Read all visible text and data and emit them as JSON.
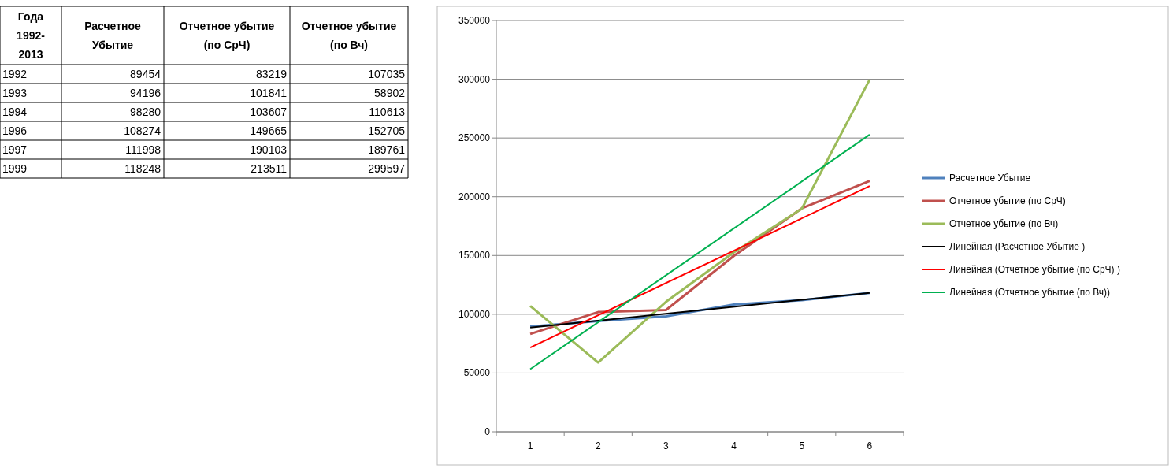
{
  "chart_data": [
    {
      "type": "heatmap",
      "ylabel": "Года 1992-2013",
      "categories": [
        "Расчетное Убытие",
        "Отчетное убытие (по СрЧ)",
        "Отчетное убытие (по Вч)"
      ],
      "y_categories": [
        "1992",
        "1993",
        "1994",
        "1996",
        "1997",
        "1999"
      ],
      "cells": [
        [
          89454,
          83219,
          107035
        ],
        [
          94196,
          101841,
          58902
        ],
        [
          98280,
          103607,
          110613
        ],
        [
          108274,
          149665,
          152705
        ],
        [
          111998,
          190103,
          189761
        ],
        [
          118248,
          213511,
          299597
        ]
      ],
      "data_labels": true
    },
    {
      "type": "line",
      "categories": [
        "1",
        "2",
        "3",
        "4",
        "5",
        "6"
      ],
      "series": [
        {
          "name": "Расчетное Убытие",
          "color": "#4f81bd",
          "values": [
            89454,
            94196,
            98280,
            108274,
            111998,
            118248
          ]
        },
        {
          "name": "Отчетное убытие (по СрЧ)",
          "color": "#c0504d",
          "values": [
            83219,
            101841,
            103607,
            149665,
            190103,
            213511
          ]
        },
        {
          "name": "Отчетное убытие (по Вч)",
          "color": "#9bbb59",
          "values": [
            107035,
            58902,
            110613,
            152705,
            189761,
            299597
          ]
        },
        {
          "name": "Линейная (Расчетное Убытие )",
          "color": "#000000",
          "type": "line",
          "x": [
            "1",
            "6"
          ],
          "values": [
            88600,
            118200
          ]
        },
        {
          "name": "Линейная (Отчетное убытие (по СрЧ) )",
          "color": "#ff0000",
          "type": "line",
          "x": [
            "1",
            "6"
          ],
          "values": [
            71600,
            209100
          ]
        },
        {
          "name": "Линейная (Отчетное убытие (по Вч))",
          "color": "#00b050",
          "type": "line",
          "x": [
            "1",
            "6"
          ],
          "values": [
            53300,
            252900
          ]
        }
      ],
      "ylim": [
        0,
        350000
      ],
      "yticks": [
        0,
        50000,
        100000,
        150000,
        200000,
        250000,
        300000,
        350000
      ],
      "grid": "y",
      "legend": "right",
      "marker": "none",
      "line_style": "solid"
    }
  ]
}
